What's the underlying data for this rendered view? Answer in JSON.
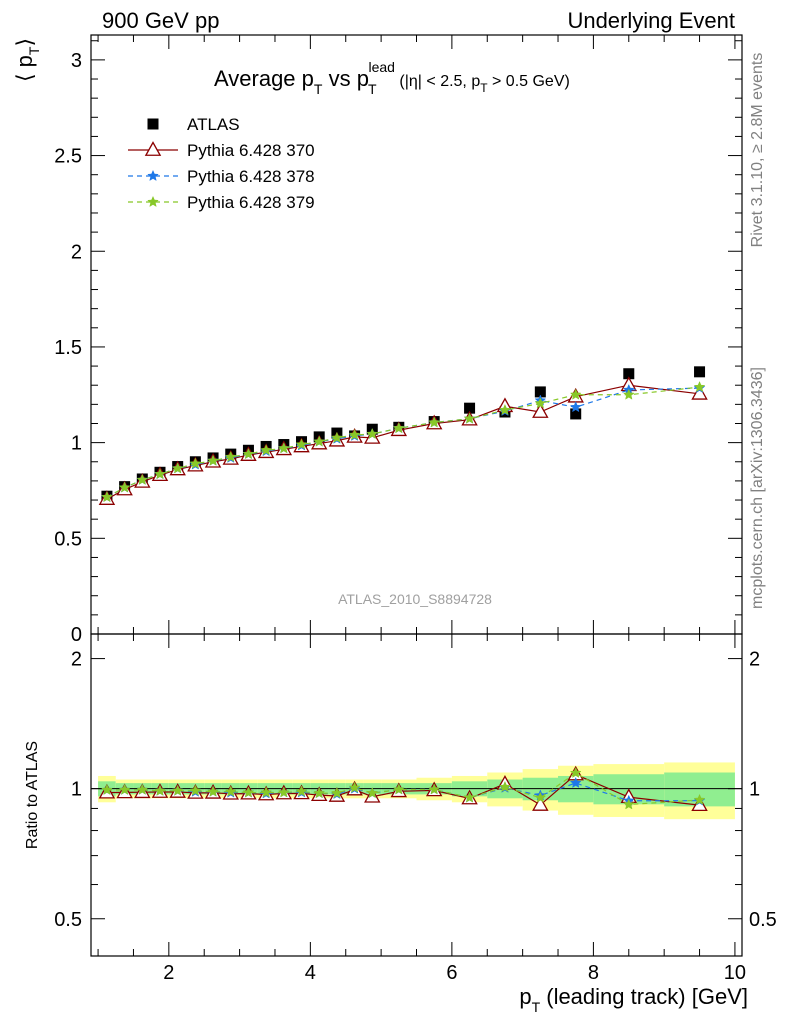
{
  "header": {
    "left": "900 GeV pp",
    "right": "Underlying Event"
  },
  "side_labels": {
    "rivet": "Rivet 3.1.10, ≥ 2.8M events",
    "mcplots": "mcplots.cern.ch [arXiv:1306.3436]"
  },
  "chart_data": {
    "type": "scatter",
    "title_main": "Average p",
    "title_sub_T": "T",
    "title_vs": " vs p",
    "title_sup_lead": "lead",
    "title_cut_a": " (|η| < 2.5, p",
    "title_cut_b": " > 0.5 GeV)",
    "analysis_id": "ATLAS_2010_S8894728",
    "xlabel_main": "p",
    "xlabel_sub": "T",
    "xlabel_rest": " (leading track) [GeV]",
    "ylabel_main": "⟨ p",
    "ylabel_sub": "T",
    "ylabel_close": "⟩",
    "ratio_ylabel": "Ratio to ATLAS",
    "xlim": [
      0.9,
      10.1
    ],
    "ylim": [
      0,
      3.13
    ],
    "ratio_ylim": [
      0.41,
      2.28
    ],
    "x_ticks": [
      "2",
      "4",
      "6",
      "8",
      "10"
    ],
    "y_ticks": [
      "0",
      "0.5",
      "1",
      "1.5",
      "2",
      "2.5",
      "3"
    ],
    "ratio_ticks": [
      "0.5",
      "1",
      "2"
    ],
    "legend_position": "top-left",
    "x": [
      1.125,
      1.375,
      1.625,
      1.875,
      2.125,
      2.375,
      2.625,
      2.875,
      3.125,
      3.375,
      3.625,
      3.875,
      4.125,
      4.375,
      4.625,
      4.875,
      5.25,
      5.75,
      6.25,
      6.75,
      7.25,
      7.75,
      8.5,
      9.5
    ],
    "bin_edges": [
      1.0,
      1.25,
      1.5,
      1.75,
      2.0,
      2.25,
      2.5,
      2.75,
      3.0,
      3.25,
      3.5,
      3.75,
      4.0,
      4.25,
      4.5,
      4.75,
      5.0,
      5.5,
      6.0,
      6.5,
      7.0,
      7.5,
      8.0,
      9.0,
      10.0
    ],
    "series": [
      {
        "name": "ATLAS",
        "style": "square",
        "color": "#000000",
        "values": [
          0.72,
          0.77,
          0.81,
          0.845,
          0.875,
          0.9,
          0.92,
          0.94,
          0.96,
          0.98,
          0.99,
          1.005,
          1.03,
          1.05,
          1.035,
          1.07,
          1.08,
          1.11,
          1.18,
          1.16,
          1.265,
          1.15,
          1.36,
          1.37
        ]
      },
      {
        "name": "Pythia 6.428 370",
        "style": "triangle-solid",
        "color": "#8b0000",
        "values": [
          0.705,
          0.755,
          0.795,
          0.83,
          0.86,
          0.88,
          0.9,
          0.915,
          0.935,
          0.95,
          0.965,
          0.98,
          0.995,
          1.01,
          1.03,
          1.025,
          1.065,
          1.1,
          1.12,
          1.19,
          1.16,
          1.24,
          1.3,
          1.255
        ]
      },
      {
        "name": "Pythia 6.428 378",
        "style": "star-dashed",
        "color": "#1e78e8",
        "values": [
          0.715,
          0.765,
          0.805,
          0.835,
          0.865,
          0.885,
          0.905,
          0.92,
          0.94,
          0.955,
          0.97,
          0.985,
          1.005,
          1.02,
          1.035,
          1.045,
          1.075,
          1.105,
          1.125,
          1.165,
          1.22,
          1.185,
          1.275,
          1.285
        ]
      },
      {
        "name": "Pythia 6.428 379",
        "style": "star-dashed",
        "color": "#88c828",
        "values": [
          0.715,
          0.765,
          0.805,
          0.835,
          0.865,
          0.89,
          0.905,
          0.925,
          0.94,
          0.96,
          0.97,
          0.99,
          1.005,
          1.025,
          1.04,
          1.045,
          1.075,
          1.105,
          1.125,
          1.17,
          1.205,
          1.25,
          1.25,
          1.29
        ]
      }
    ],
    "ratio_bands": {
      "inner_halfwidth": [
        0.04,
        0.03,
        0.03,
        0.03,
        0.03,
        0.03,
        0.03,
        0.03,
        0.03,
        0.03,
        0.03,
        0.03,
        0.03,
        0.03,
        0.03,
        0.03,
        0.03,
        0.03,
        0.04,
        0.05,
        0.06,
        0.07,
        0.08,
        0.09
      ],
      "outer_halfwidth": [
        0.07,
        0.05,
        0.05,
        0.05,
        0.05,
        0.05,
        0.05,
        0.05,
        0.05,
        0.05,
        0.05,
        0.05,
        0.05,
        0.05,
        0.05,
        0.05,
        0.05,
        0.06,
        0.07,
        0.09,
        0.11,
        0.13,
        0.14,
        0.15
      ],
      "inner_color": "#90ee90",
      "outer_color": "#ffff99"
    }
  }
}
